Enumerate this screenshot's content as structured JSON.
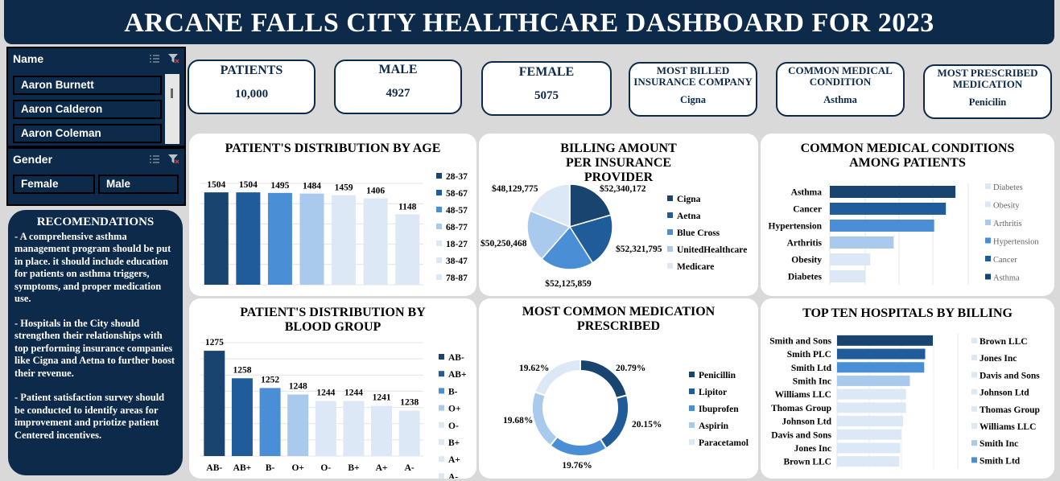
{
  "title": "ARCANE FALLS CITY HEALTHCARE DASHBOARD FOR 2023",
  "slicers": {
    "name": {
      "label": "Name",
      "items": [
        "Aaron Burnett",
        "Aaron Calderon",
        "Aaron Coleman"
      ]
    },
    "gender": {
      "label": "Gender",
      "items": [
        "Female",
        "Male"
      ]
    }
  },
  "recommendations": {
    "title": "RECOMENDATIONS",
    "items": [
      "- A comprehensive asthma management program should be put in place. it should include education for patients on asthma triggers, symptoms, and proper medication use.",
      "- Hospitals in the City should strengthen their relationships with top performing insurance companies like Cigna and Aetna to further boost their revenue.",
      "- Patient satisfaction survey should be conducted to identify areas for improvement and priotize patient Centered incentives."
    ]
  },
  "kpis": [
    {
      "label": "PATIENTS",
      "value": "10,000"
    },
    {
      "label": "MALE",
      "value": "4927"
    },
    {
      "label": "FEMALE",
      "value": "5075"
    },
    {
      "label": "MOST BILLED INSURANCE COMPANY",
      "value": "Cigna"
    },
    {
      "label": "COMMON MEDICAL CONDITION",
      "value": "Asthma"
    },
    {
      "label": "MOST PRESCRIBED MEDICATION",
      "value": "Penicilin"
    }
  ],
  "colors": {
    "navy": "#0d2a4a",
    "c1": "#1a4470",
    "c2": "#1f5c99",
    "c3": "#4a8fd6",
    "c4": "#a9c9ed",
    "c5": "#dce8f6",
    "c6": "#e6eef8"
  },
  "chart_data": [
    {
      "type": "bar",
      "title": "PATIENT'S DISTRIBUTION BY AGE",
      "categories": [
        "28-37",
        "58-67",
        "48-57",
        "68-77",
        "18-27",
        "38-47",
        "78-87"
      ],
      "values": [
        1504,
        1504,
        1495,
        1484,
        1459,
        1406,
        1148
      ],
      "colors": [
        "#1a4470",
        "#1f5c99",
        "#4a8fd6",
        "#a9c9ed",
        "#dce8f6",
        "#dce8f6",
        "#dce8f6"
      ],
      "legend": "right",
      "ylim": [
        0,
        1650
      ]
    },
    {
      "type": "pie",
      "title": "BILLING AMOUNT PER INSURANCE PROVIDER",
      "categories": [
        "Cigna",
        "Aetna",
        "Blue Cross",
        "UnitedHealthcare",
        "Medicare"
      ],
      "values": [
        52340172,
        52321795,
        52125859,
        50250468,
        48129775
      ],
      "labels": [
        "$52,340,172",
        "$52,321,795",
        "$52,125,859",
        "$50,250,468",
        "$48,129,775"
      ],
      "colors": [
        "#1a4470",
        "#1f5c99",
        "#4a8fd6",
        "#a9c9ed",
        "#dce8f6"
      ],
      "legend": "right"
    },
    {
      "type": "bar",
      "orientation": "horizontal",
      "title": "COMMON MEDICAL CONDITIONS AMONG PATIENTS",
      "categories": [
        "Asthma",
        "Cancer",
        "Hypertension",
        "Arthritis",
        "Obesity",
        "Diabetes"
      ],
      "values": [
        1708,
        1699,
        1688,
        1650,
        1628,
        1623
      ],
      "colors": [
        "#1a4470",
        "#1f5c99",
        "#4a8fd6",
        "#a9c9ed",
        "#dce8f6",
        "#dce8f6"
      ],
      "legend_items": [
        "Diabetes",
        "Obesity",
        "Arthritis",
        "Hypertension",
        "Cancer",
        "Asthma"
      ],
      "legend_colors": [
        "#dce8f6",
        "#dce8f6",
        "#a9c9ed",
        "#4a8fd6",
        "#1f5c99",
        "#1a4470"
      ],
      "legend": "right",
      "xlim": [
        1590,
        1720
      ]
    },
    {
      "type": "bar",
      "title": "PATIENT'S DISTRIBUTION BY BLOOD GROUP",
      "categories": [
        "AB-",
        "AB+",
        "B-",
        "O+",
        "O-",
        "B+",
        "A+",
        "A-"
      ],
      "values": [
        1275,
        1258,
        1252,
        1248,
        1244,
        1244,
        1241,
        1238
      ],
      "colors": [
        "#1a4470",
        "#1f5c99",
        "#4a8fd6",
        "#a9c9ed",
        "#dce8f6",
        "#dce8f6",
        "#dce8f6",
        "#dce8f6"
      ],
      "legend": "right",
      "ylim": [
        1210,
        1280
      ]
    },
    {
      "type": "pie",
      "variant": "doughnut",
      "title": "MOST COMMON MEDICATION PRESCRIBED",
      "categories": [
        "Penicillin",
        "Lipitor",
        "Ibuprofen",
        "Aspirin",
        "Paracetamol"
      ],
      "values": [
        20.79,
        20.15,
        19.76,
        19.68,
        19.62
      ],
      "labels": [
        "20.79%",
        "20.15%",
        "19.76%",
        "19.68%",
        "19.62%"
      ],
      "colors": [
        "#1a4470",
        "#1f5c99",
        "#4a8fd6",
        "#a9c9ed",
        "#dce8f6"
      ],
      "legend": "right"
    },
    {
      "type": "bar",
      "orientation": "horizontal",
      "title": "TOP TEN HOSPITALS BY BILLING",
      "categories": [
        "Smith and Sons",
        "Smith PLC",
        "Smith Ltd",
        "Smith Inc",
        "Williams LLC",
        "Thomas Group",
        "Johnson Ltd",
        "Davis and Sons",
        "Jones Inc",
        "Brown LLC"
      ],
      "values": [
        100,
        92,
        91,
        76,
        72,
        72,
        69,
        67,
        66,
        65
      ],
      "colors": [
        "#1a4470",
        "#1f5c99",
        "#4a8fd6",
        "#a9c9ed",
        "#dce8f6",
        "#dce8f6",
        "#dce8f6",
        "#dce8f6",
        "#dce8f6",
        "#dce8f6"
      ],
      "legend_items": [
        "Brown LLC",
        "Jones Inc",
        "Davis and Sons",
        "Johnson Ltd",
        "Thomas Group",
        "Williams LLC",
        "Smith Inc",
        "Smith Ltd"
      ],
      "legend_colors": [
        "#dce8f6",
        "#dce8f6",
        "#dce8f6",
        "#dce8f6",
        "#dce8f6",
        "#dce8f6",
        "#a9c9ed",
        "#4a8fd6"
      ],
      "legend": "right"
    }
  ]
}
